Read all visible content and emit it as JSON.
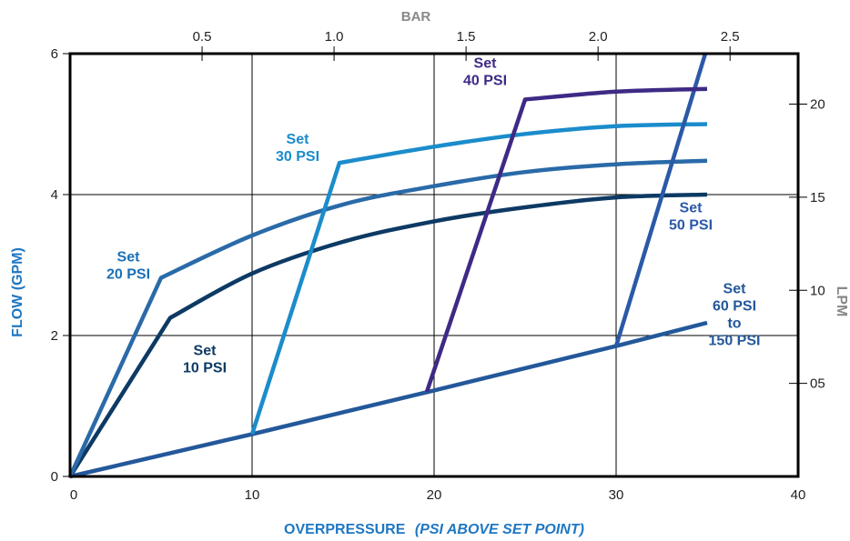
{
  "chart_data": {
    "type": "line",
    "xlabel": "OVERPRESSURE",
    "xlabel_suffix": "(PSI ABOVE SET POINT)",
    "ylabel": "FLOW (GPM)",
    "top_axis_label": "BAR",
    "right_axis_label": "LPM",
    "xlim": [
      0,
      40
    ],
    "ylim": [
      0,
      6
    ],
    "x_ticks": [
      0,
      10,
      20,
      30,
      40
    ],
    "y_ticks": [
      0,
      2,
      4,
      6
    ],
    "bar_ticks": [
      {
        "value": 0.5,
        "label": "0.5"
      },
      {
        "value": 1.0,
        "label": "1.0"
      },
      {
        "value": 1.5,
        "label": "1.5"
      },
      {
        "value": 2.0,
        "label": "2.0"
      },
      {
        "value": 2.5,
        "label": "2.5"
      }
    ],
    "lpm_ticks": [
      {
        "value": 5,
        "label": "05"
      },
      {
        "value": 10,
        "label": "10"
      },
      {
        "value": 15,
        "label": "15"
      },
      {
        "value": 20,
        "label": "20"
      }
    ],
    "grid": true,
    "colors": {
      "set10": "#0d3a64",
      "set20": "#2a6aa8",
      "set30": "#1b8ccc",
      "set40": "#3e2a85",
      "set50": "#2b59a8",
      "set60": "#23589a",
      "label_blue": "#1a6fb5",
      "axis_title_blue": "#1f77c2",
      "secondary_axis_gray": "#888888"
    },
    "series": [
      {
        "id": "set10",
        "name": "Set 10 PSI",
        "label_lines": [
          "Set",
          "10 PSI"
        ],
        "x": [
          0,
          5.5,
          10,
          15,
          20,
          25,
          30,
          35
        ],
        "y": [
          0,
          2.25,
          2.88,
          3.33,
          3.62,
          3.82,
          3.96,
          4.0
        ]
      },
      {
        "id": "set20",
        "name": "Set 20 PSI",
        "label_lines": [
          "Set",
          "20 PSI"
        ],
        "x": [
          0,
          5,
          10,
          15,
          20,
          25,
          30,
          35
        ],
        "y": [
          0,
          2.82,
          3.42,
          3.86,
          4.12,
          4.32,
          4.43,
          4.48
        ]
      },
      {
        "id": "set30",
        "name": "Set 30 PSI",
        "label_lines": [
          "Set",
          "30 PSI"
        ],
        "x": [
          10,
          14.8,
          20,
          25,
          30,
          35
        ],
        "y": [
          0.6,
          4.45,
          4.68,
          4.86,
          4.97,
          5.0
        ]
      },
      {
        "id": "set40",
        "name": "Set 40 PSI",
        "label_lines": [
          "Set",
          "40 PSI"
        ],
        "x": [
          19.6,
          25,
          30,
          35
        ],
        "y": [
          1.2,
          5.35,
          5.46,
          5.5
        ]
      },
      {
        "id": "set50",
        "name": "Set 50 PSI",
        "label_lines": [
          "Set",
          "50 PSI"
        ],
        "x": [
          30,
          34.9
        ],
        "y": [
          1.85,
          6.0
        ]
      },
      {
        "id": "set60",
        "name": "Set 60 PSI to 150 PSI",
        "label_lines": [
          "Set",
          "60 PSI",
          "to",
          "150 PSI"
        ],
        "x": [
          0,
          10,
          20,
          30,
          35
        ],
        "y": [
          0,
          0.6,
          1.22,
          1.85,
          2.18
        ]
      }
    ]
  }
}
